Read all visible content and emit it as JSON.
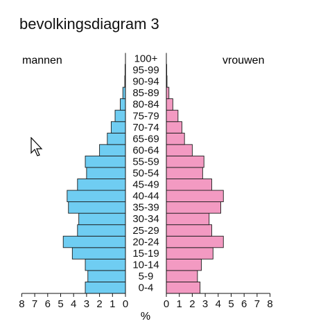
{
  "title": "bevolkingsdiagram 3",
  "chart_data": {
    "type": "bar",
    "title": "bevolkingsdiagram 3",
    "left_label": "mannen",
    "right_label": "vrouwen",
    "xlabel": "%",
    "xlim": [
      0,
      8
    ],
    "x_ticks": [
      "8",
      "7",
      "6",
      "5",
      "4",
      "3",
      "2",
      "1",
      "0"
    ],
    "x_ticks_right": [
      "0",
      "1",
      "2",
      "3",
      "4",
      "5",
      "6",
      "7",
      "8"
    ],
    "categories": [
      "0-4",
      "5-9",
      "10-14",
      "15-19",
      "20-24",
      "25-29",
      "30-34",
      "35-39",
      "40-44",
      "45-49",
      "50-54",
      "55-59",
      "60-64",
      "65-69",
      "70-74",
      "75-79",
      "80-84",
      "85-89",
      "90-94",
      "95-99",
      "100+"
    ],
    "series": [
      {
        "name": "mannen",
        "color": "#6fcdf2",
        "values": [
          3.1,
          2.9,
          3.1,
          4.1,
          4.8,
          3.7,
          3.6,
          4.4,
          4.5,
          3.7,
          3.0,
          3.1,
          2.0,
          1.4,
          1.1,
          0.8,
          0.4,
          0.2,
          0.05,
          0.03,
          0.0
        ]
      },
      {
        "name": "vrouwen",
        "color": "#f39ac2",
        "values": [
          2.6,
          2.4,
          2.7,
          3.6,
          4.4,
          3.5,
          3.3,
          4.2,
          4.4,
          3.5,
          2.8,
          2.9,
          2.0,
          1.4,
          1.2,
          0.9,
          0.5,
          0.2,
          0.05,
          0.03,
          0.0
        ]
      }
    ]
  }
}
